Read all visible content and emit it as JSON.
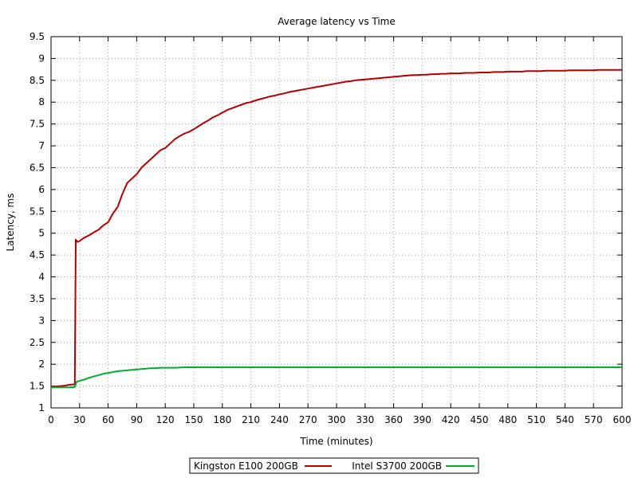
{
  "chart_data": {
    "type": "line",
    "title": "Average latency vs Time",
    "xlabel": "Time (minutes)",
    "ylabel": "Latency, ms",
    "xlim": [
      0,
      600
    ],
    "ylim": [
      1,
      9.5
    ],
    "xticks": [
      0,
      30,
      60,
      90,
      120,
      150,
      180,
      210,
      240,
      270,
      300,
      330,
      360,
      390,
      420,
      450,
      480,
      510,
      540,
      570,
      600
    ],
    "yticks": [
      1,
      1.5,
      2,
      2.5,
      3,
      3.5,
      4,
      4.5,
      5,
      5.5,
      6,
      6.5,
      7,
      7.5,
      8,
      8.5,
      9,
      9.5
    ],
    "xtick_labels": [
      "0",
      "30",
      "60",
      "90",
      "120",
      "150",
      "180",
      "210",
      "240",
      "270",
      "300",
      "330",
      "360",
      "390",
      "420",
      "450",
      "480",
      "510",
      "540",
      "570",
      "600"
    ],
    "ytick_labels": [
      "1",
      "1.5",
      "2",
      "2.5",
      "3",
      "3.5",
      "4",
      "4.5",
      "5",
      "5.5",
      "6",
      "6.5",
      "7",
      "7.5",
      "8",
      "8.5",
      "9",
      "9.5"
    ],
    "grid": true,
    "legend_position": "bottom-center",
    "series": [
      {
        "name": "Kingston E100 200GB",
        "color": "#b30000",
        "x": [
          0,
          5,
          10,
          15,
          20,
          25,
          26,
          28,
          30,
          35,
          40,
          45,
          50,
          55,
          60,
          65,
          70,
          75,
          80,
          85,
          90,
          95,
          100,
          105,
          110,
          115,
          120,
          125,
          130,
          135,
          140,
          145,
          150,
          155,
          160,
          165,
          170,
          175,
          180,
          185,
          190,
          195,
          200,
          205,
          210,
          215,
          220,
          225,
          230,
          235,
          240,
          245,
          250,
          255,
          260,
          265,
          270,
          275,
          280,
          285,
          290,
          295,
          300,
          305,
          310,
          315,
          320,
          325,
          330,
          335,
          340,
          345,
          350,
          355,
          360,
          365,
          370,
          375,
          380,
          385,
          390,
          395,
          400,
          405,
          410,
          415,
          420,
          425,
          430,
          435,
          440,
          445,
          450,
          455,
          460,
          465,
          470,
          475,
          480,
          485,
          490,
          495,
          500,
          505,
          510,
          515,
          520,
          525,
          530,
          535,
          540,
          545,
          550,
          555,
          560,
          565,
          570,
          575,
          580,
          585,
          590,
          595,
          600
        ],
        "y": [
          1.48,
          1.49,
          1.5,
          1.51,
          1.53,
          1.54,
          4.85,
          4.8,
          4.82,
          4.9,
          4.95,
          5.02,
          5.08,
          5.18,
          5.25,
          5.45,
          5.6,
          5.9,
          6.15,
          6.25,
          6.35,
          6.5,
          6.6,
          6.7,
          6.8,
          6.9,
          6.95,
          7.05,
          7.15,
          7.22,
          7.28,
          7.32,
          7.38,
          7.45,
          7.52,
          7.58,
          7.65,
          7.7,
          7.76,
          7.82,
          7.86,
          7.9,
          7.94,
          7.98,
          8.0,
          8.04,
          8.07,
          8.1,
          8.13,
          8.15,
          8.18,
          8.2,
          8.23,
          8.25,
          8.27,
          8.29,
          8.31,
          8.33,
          8.35,
          8.37,
          8.39,
          8.41,
          8.43,
          8.45,
          8.47,
          8.48,
          8.5,
          8.51,
          8.52,
          8.53,
          8.54,
          8.55,
          8.56,
          8.57,
          8.58,
          8.59,
          8.6,
          8.61,
          8.62,
          8.62,
          8.63,
          8.63,
          8.64,
          8.64,
          8.65,
          8.65,
          8.66,
          8.66,
          8.66,
          8.67,
          8.67,
          8.67,
          8.68,
          8.68,
          8.68,
          8.69,
          8.69,
          8.69,
          8.7,
          8.7,
          8.7,
          8.7,
          8.71,
          8.71,
          8.71,
          8.71,
          8.72,
          8.72,
          8.72,
          8.72,
          8.72,
          8.73,
          8.73,
          8.73,
          8.73,
          8.73,
          8.73,
          8.74,
          8.74,
          8.74,
          8.74,
          8.74,
          8.74
        ]
      },
      {
        "name": "Intel S3700 200GB",
        "color": "#00b030",
        "x": [
          0,
          5,
          10,
          15,
          20,
          25,
          27,
          30,
          35,
          40,
          45,
          50,
          55,
          60,
          65,
          70,
          75,
          80,
          85,
          90,
          95,
          100,
          105,
          110,
          115,
          120,
          130,
          140,
          150,
          160,
          170,
          180,
          190,
          200,
          210,
          220,
          230,
          240,
          250,
          260,
          270,
          280,
          290,
          300,
          310,
          320,
          330,
          340,
          350,
          360,
          370,
          380,
          390,
          400,
          410,
          420,
          430,
          440,
          450,
          460,
          470,
          480,
          490,
          500,
          510,
          520,
          530,
          540,
          550,
          560,
          570,
          580,
          590,
          600
        ],
        "y": [
          1.47,
          1.47,
          1.47,
          1.47,
          1.47,
          1.48,
          1.6,
          1.62,
          1.65,
          1.69,
          1.72,
          1.75,
          1.78,
          1.8,
          1.82,
          1.84,
          1.85,
          1.86,
          1.87,
          1.88,
          1.89,
          1.9,
          1.91,
          1.91,
          1.92,
          1.92,
          1.92,
          1.93,
          1.93,
          1.93,
          1.93,
          1.93,
          1.93,
          1.93,
          1.93,
          1.93,
          1.93,
          1.93,
          1.93,
          1.93,
          1.93,
          1.93,
          1.93,
          1.93,
          1.93,
          1.93,
          1.93,
          1.93,
          1.93,
          1.93,
          1.93,
          1.93,
          1.93,
          1.93,
          1.93,
          1.93,
          1.93,
          1.93,
          1.93,
          1.93,
          1.93,
          1.93,
          1.93,
          1.93,
          1.93,
          1.93,
          1.93,
          1.93,
          1.93,
          1.93,
          1.93,
          1.93,
          1.93,
          1.93
        ]
      }
    ]
  }
}
